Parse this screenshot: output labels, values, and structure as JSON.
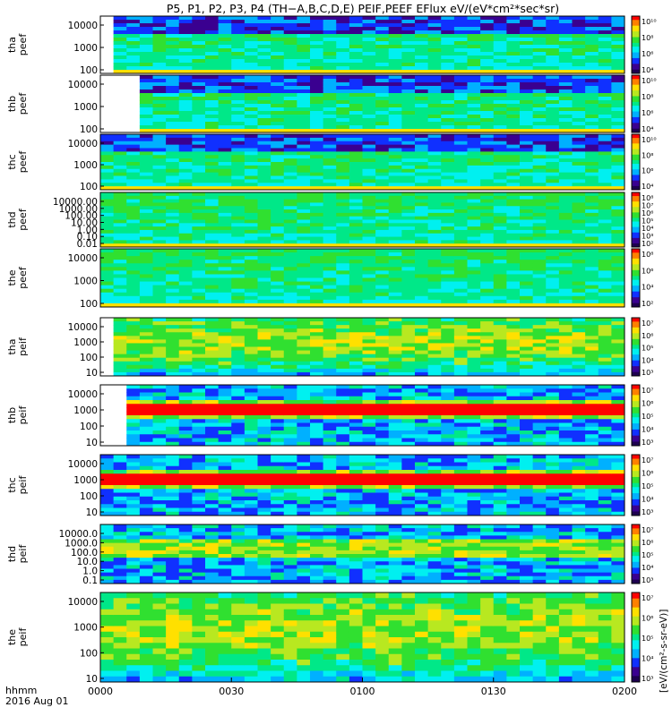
{
  "title": "P5, P1, P2, P3, P4 (TH−A,B,C,D,E) PEIF,PEEF EFlux eV/(eV*cm²*sec*sr)",
  "time_axis": {
    "ticks": [
      "0000",
      "0030",
      "0100",
      "0130",
      "0200"
    ],
    "corner_label": "hhmm",
    "date_label": "2016 Aug 01"
  },
  "colorbar_unit_label": "[eV/(cm²-s-sr-eV)]",
  "colors": {
    "colormap": [
      "#1e0050",
      "#3a0090",
      "#1030ff",
      "#00b0ff",
      "#00f0f0",
      "#00e888",
      "#30e030",
      "#b8e820",
      "#ffe000",
      "#ff8000",
      "#ff0000"
    ],
    "frame": "#000000",
    "gap_fill": "#ffffff"
  },
  "chart_data": [
    {
      "type": "heatmap",
      "panel": "tha_peef",
      "ylabel": [
        "tha",
        "peef"
      ],
      "yscale": "log",
      "yticks": [
        "10000",
        "1000",
        "100"
      ],
      "cbar_ticks": [
        "10¹⁰",
        "10⁸",
        "10⁶",
        "10⁴"
      ],
      "data_start_fraction": 0.03
    },
    {
      "type": "heatmap",
      "panel": "thb_peef",
      "ylabel": [
        "thb",
        "peef"
      ],
      "yscale": "log",
      "yticks": [
        "10000",
        "1000",
        "100"
      ],
      "cbar_ticks": [
        "10¹⁰",
        "10⁸",
        "10⁶",
        "10⁴"
      ],
      "data_start_fraction": 0.07
    },
    {
      "type": "heatmap",
      "panel": "thc_peef",
      "ylabel": [
        "thc",
        "peef"
      ],
      "yscale": "log",
      "yticks": [
        "10000",
        "1000",
        "100"
      ],
      "cbar_ticks": [
        "10¹⁰",
        "10⁸",
        "10⁶",
        "10⁴"
      ],
      "data_start_fraction": 0.0
    },
    {
      "type": "heatmap",
      "panel": "thd_peef",
      "ylabel": [
        "thd",
        "peef"
      ],
      "yscale": "log",
      "yticks": [
        "10000.00",
        "1000.00",
        "100.00",
        "10.00",
        "1.00",
        "0.10",
        "0.01"
      ],
      "cbar_ticks": [
        "10⁸",
        "10⁷",
        "10⁶",
        "10⁵",
        "10⁴",
        "10³",
        "10²"
      ],
      "data_start_fraction": 0.0
    },
    {
      "type": "heatmap",
      "panel": "the_peef",
      "ylabel": [
        "the",
        "peef"
      ],
      "yscale": "log",
      "yticks": [
        "10000",
        "1000",
        "100"
      ],
      "cbar_ticks": [
        "10⁸",
        "10⁶",
        "10⁴",
        "10²"
      ],
      "data_start_fraction": 0.0
    },
    {
      "type": "heatmap",
      "panel": "tha_peif",
      "ylabel": [
        "tha",
        "peif"
      ],
      "yscale": "log",
      "yticks": [
        "10000",
        "1000",
        "100",
        "10"
      ],
      "cbar_ticks": [
        "10⁷",
        "10⁶",
        "10⁵",
        "10⁴",
        "10³"
      ],
      "data_start_fraction": 0.03
    },
    {
      "type": "heatmap",
      "panel": "thb_peif",
      "ylabel": [
        "thb",
        "peif"
      ],
      "yscale": "log",
      "yticks": [
        "10000",
        "1000",
        "100",
        "10"
      ],
      "cbar_ticks": [
        "10⁷",
        "10⁶",
        "10⁵",
        "10⁴",
        "10³"
      ],
      "data_start_fraction": 0.05
    },
    {
      "type": "heatmap",
      "panel": "thc_peif",
      "ylabel": [
        "thc",
        "peif"
      ],
      "yscale": "log",
      "yticks": [
        "10000",
        "1000",
        "100",
        "10"
      ],
      "cbar_ticks": [
        "10⁷",
        "10⁶",
        "10⁵",
        "10⁴",
        "10³"
      ],
      "data_start_fraction": 0.0
    },
    {
      "type": "heatmap",
      "panel": "thd_peif",
      "ylabel": [
        "thd",
        "peif"
      ],
      "yscale": "log",
      "yticks": [
        "10000.0",
        "1000.0",
        "100.0",
        "10.0",
        "1.0",
        "0.1"
      ],
      "cbar_ticks": [
        "10⁷",
        "10⁶",
        "10⁵",
        "10⁴",
        "10³"
      ],
      "data_start_fraction": 0.0
    },
    {
      "type": "heatmap",
      "panel": "the_peif",
      "ylabel": [
        "the",
        "peif"
      ],
      "yscale": "log",
      "yticks": [
        "10000",
        "1000",
        "100",
        "10"
      ],
      "cbar_ticks": [
        "10⁷",
        "10⁶",
        "10⁵",
        "10⁴",
        "10³"
      ],
      "data_start_fraction": 0.0
    }
  ]
}
